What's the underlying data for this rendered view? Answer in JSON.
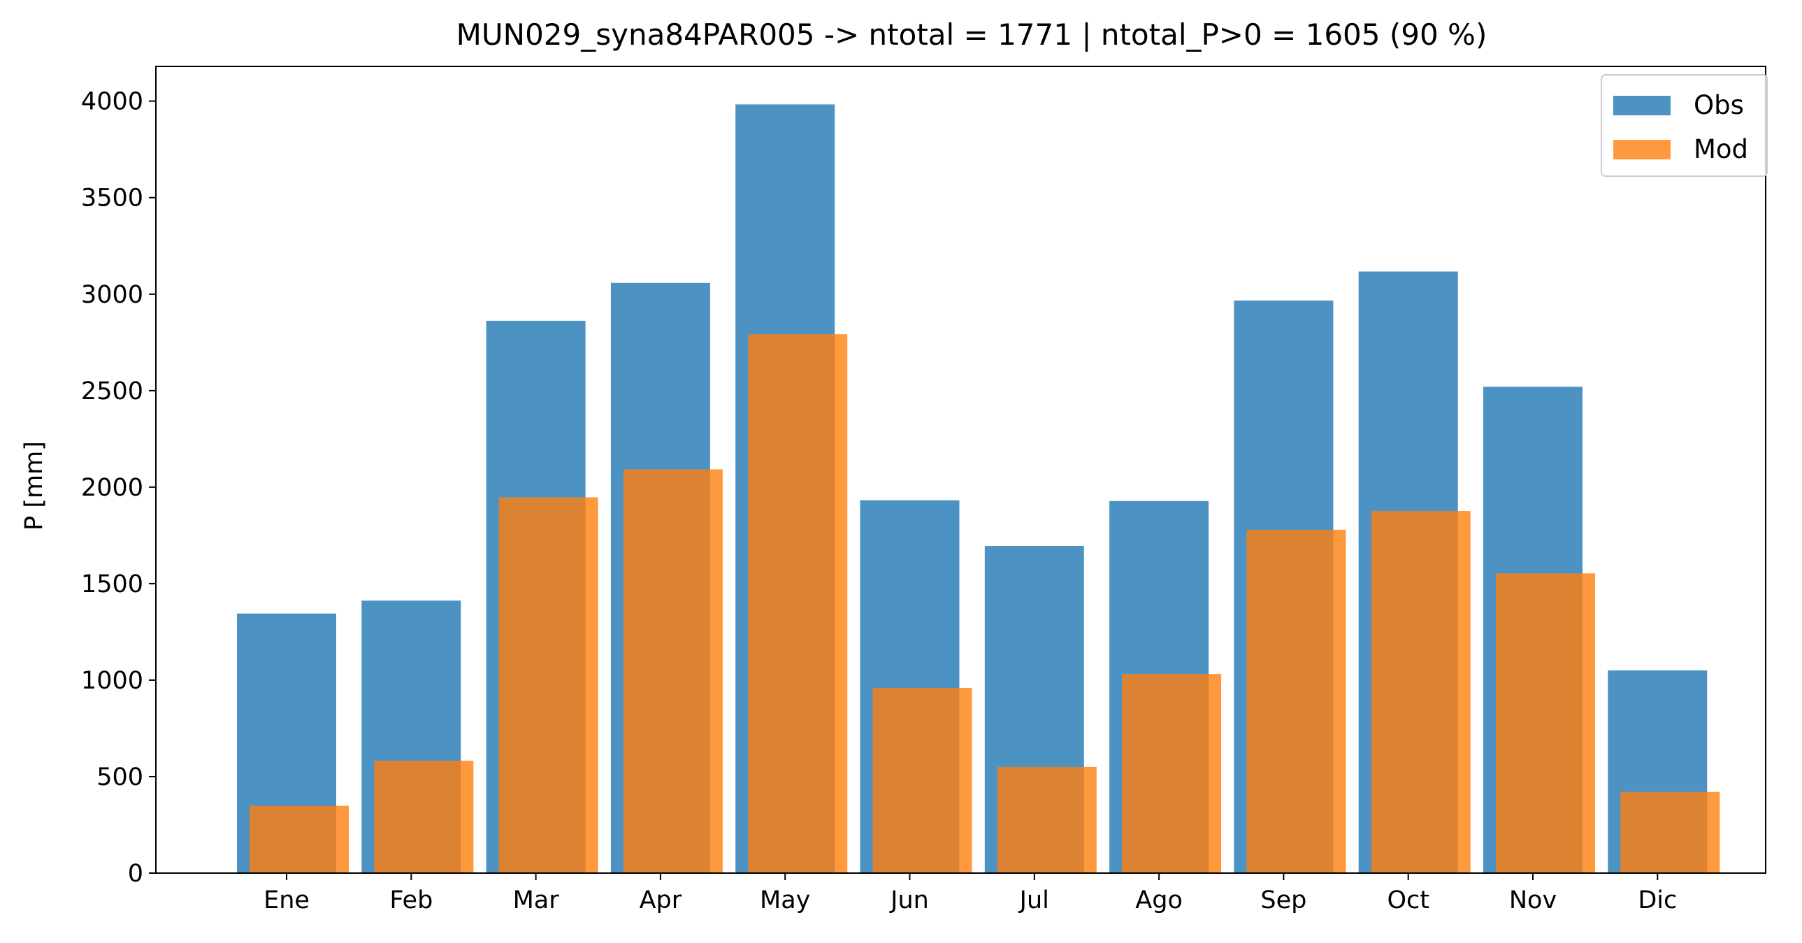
{
  "chart_data": {
    "type": "bar",
    "title": "MUN029_syna84PAR005 -> ntotal = 1771 | ntotal_P>0 = 1605 (90 %)",
    "xlabel": "",
    "ylabel": "P [mm]",
    "ylim": [
      0,
      4180
    ],
    "yticks": [
      0,
      500,
      1000,
      1500,
      2000,
      2500,
      3000,
      3500,
      4000
    ],
    "categories": [
      "Ene",
      "Feb",
      "Mar",
      "Apr",
      "May",
      "Jun",
      "Jul",
      "Ago",
      "Sep",
      "Oct",
      "Nov",
      "Dic"
    ],
    "series": [
      {
        "name": "Obs",
        "color": "#1f77b4",
        "values": [
          1345,
          1412,
          2862,
          3058,
          3983,
          1932,
          1695,
          1928,
          2967,
          3117,
          2520,
          1050
        ]
      },
      {
        "name": "Mod",
        "color": "#ff7f0e",
        "values": [
          349,
          582,
          1947,
          2092,
          2792,
          960,
          551,
          1032,
          1779,
          1876,
          1553,
          421
        ]
      }
    ],
    "legend_position": "top-right",
    "grid": false
  }
}
